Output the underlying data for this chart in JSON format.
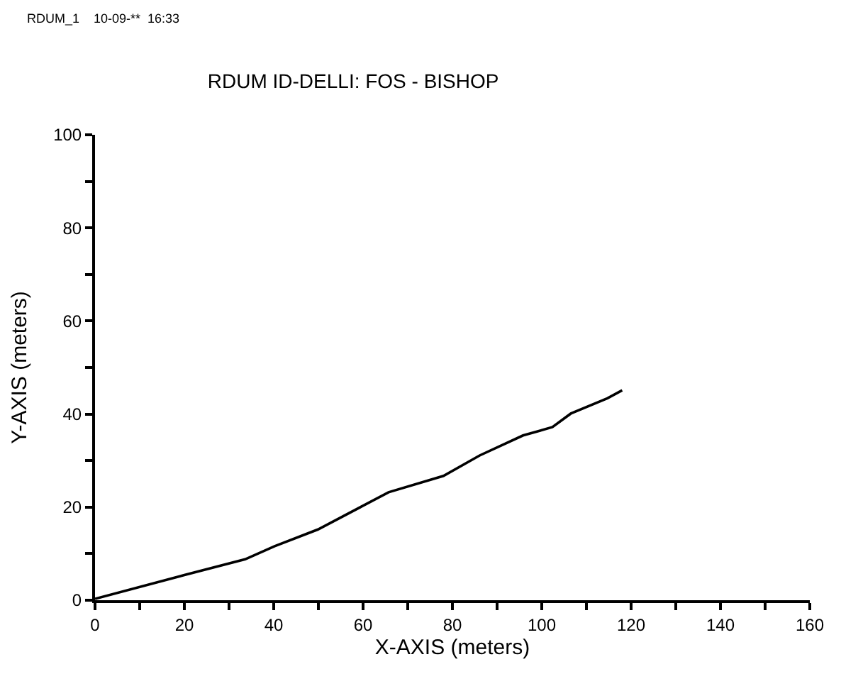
{
  "chart_data": {
    "type": "line",
    "title": "RDUM ID-DELLI: FOS - BISHOP",
    "xlabel": "X-AXIS (meters)",
    "ylabel": "Y-AXIS (meters)",
    "annotations": [
      "RDUM_1    10-09-**  16:33"
    ],
    "series": [
      {
        "color": "#000000",
        "x": [
          0,
          20,
          33.6,
          40.2,
          49.9,
          59.6,
          65.7,
          78,
          86.1,
          95.8,
          102.4,
          106.5,
          114.7,
          118
        ],
        "values": [
          0.3,
          5.4,
          8.8,
          11.6,
          15.2,
          20.1,
          23.2,
          26.7,
          31.1,
          35.4,
          37.2,
          40.1,
          43.4,
          45.1
        ]
      }
    ],
    "xlim": [
      0,
      160
    ],
    "ylim": [
      0,
      100
    ],
    "xticks": [
      0,
      {
        "value": 10,
        "label": null
      },
      20,
      {
        "value": 30,
        "label": null
      },
      40,
      {
        "value": 50,
        "label": null
      },
      60,
      {
        "value": 70,
        "label": null
      },
      80,
      {
        "value": 90,
        "label": null
      },
      100,
      {
        "value": 110,
        "label": null
      },
      120,
      {
        "value": 130,
        "label": null
      },
      140,
      {
        "value": 150,
        "label": null
      },
      160
    ],
    "yticks": [
      0,
      {
        "value": 10,
        "label": null
      },
      20,
      {
        "value": 30,
        "label": null
      },
      40,
      {
        "value": 50,
        "label": null
      },
      60,
      {
        "value": 70,
        "label": null
      },
      80,
      {
        "value": 90,
        "label": null
      },
      100
    ],
    "legend": false,
    "marker": "none",
    "line_style": "solid"
  }
}
